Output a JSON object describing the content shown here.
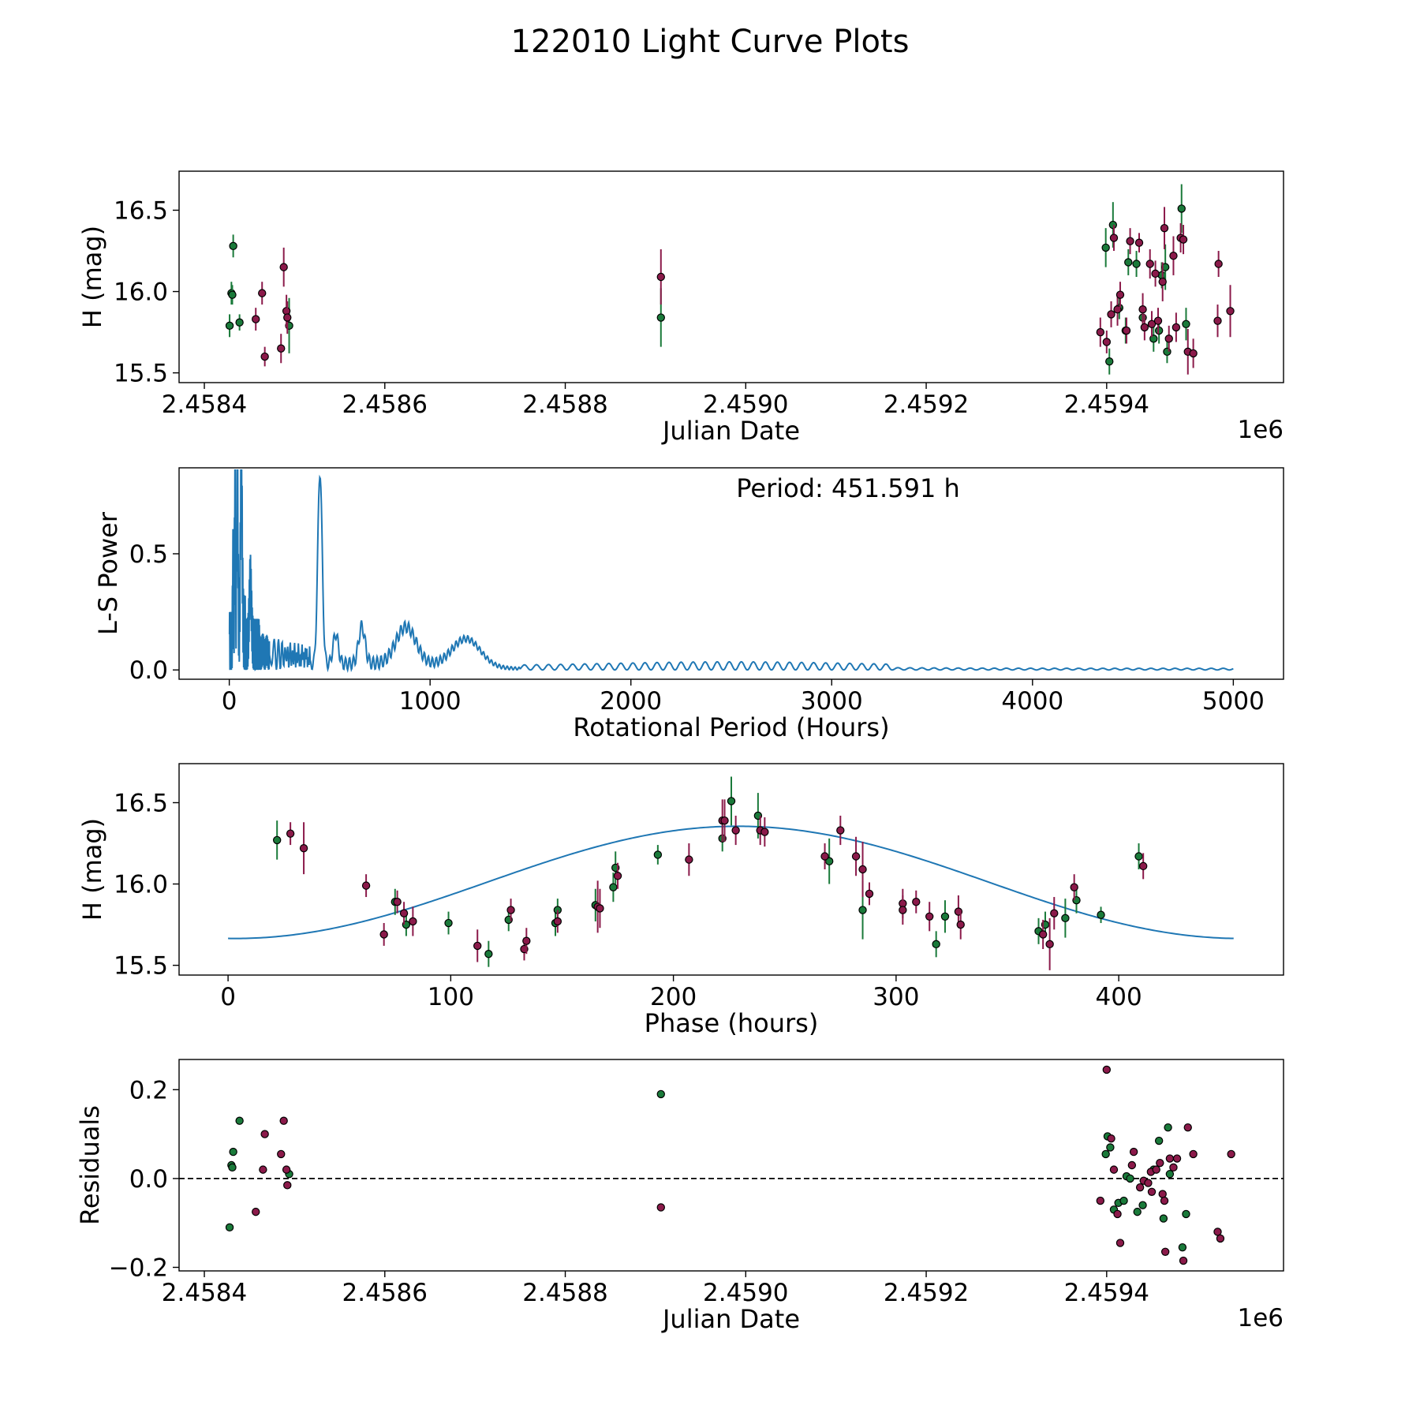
{
  "figure": {
    "title": "122010 Light Curve Plots"
  },
  "colors": {
    "maroon": "#8b1a4a",
    "green": "#1a7a3a",
    "line": "#1f77b4",
    "edge": "#000000"
  },
  "chart_data": [
    {
      "id": "lightcurve",
      "type": "scatter",
      "xlabel": "Julian Date",
      "ylabel": "H (mag)",
      "offset_label": "1e6",
      "xlim": [
        2458372,
        2459596
      ],
      "ylim": [
        15.44,
        16.74
      ],
      "xticks": [
        2458400,
        2458600,
        2458800,
        2459000,
        2459200,
        2459400
      ],
      "xtick_labels": [
        "2.4584",
        "2.4586",
        "2.4588",
        "2.4590",
        "2.4592",
        "2.4594"
      ],
      "yticks": [
        15.5,
        16.0,
        16.5
      ],
      "ytick_labels": [
        "15.5",
        "16.0",
        "16.5"
      ],
      "series": [
        {
          "name": "green",
          "color_key": "green",
          "points": [
            [
              2458428,
              15.79,
              0.07
            ],
            [
              2458430,
              15.99,
              0.07
            ],
            [
              2458431,
              15.98,
              0.06
            ],
            [
              2458432,
              16.28,
              0.07
            ],
            [
              2458439,
              15.81,
              0.05
            ],
            [
              2458494,
              15.79,
              0.17
            ],
            [
              2458906,
              15.84,
              0.18
            ],
            [
              2459399,
              16.27,
              0.12
            ],
            [
              2459403,
              15.57,
              0.08
            ],
            [
              2459407,
              16.41,
              0.14
            ],
            [
              2459414,
              15.9,
              0.07
            ],
            [
              2459421,
              15.76,
              0.08
            ],
            [
              2459424,
              16.18,
              0.08
            ],
            [
              2459433,
              16.17,
              0.08
            ],
            [
              2459440,
              15.84,
              0.07
            ],
            [
              2459452,
              15.71,
              0.08
            ],
            [
              2459458,
              15.76,
              0.08
            ],
            [
              2459461,
              16.1,
              0.08
            ],
            [
              2459465,
              16.15,
              0.14
            ],
            [
              2459467,
              15.63,
              0.07
            ],
            [
              2459483,
              16.51,
              0.15
            ],
            [
              2459488,
              15.8,
              0.1
            ]
          ]
        },
        {
          "name": "maroon",
          "color_key": "maroon",
          "points": [
            [
              2458457,
              15.83,
              0.07
            ],
            [
              2458464,
              15.99,
              0.07
            ],
            [
              2458467,
              15.6,
              0.06
            ],
            [
              2458485,
              15.65,
              0.09
            ],
            [
              2458488,
              16.15,
              0.12
            ],
            [
              2458491,
              15.88,
              0.1
            ],
            [
              2458492,
              15.84,
              0.1
            ],
            [
              2458906,
              16.09,
              0.17
            ],
            [
              2459393,
              15.75,
              0.09
            ],
            [
              2459400,
              15.69,
              0.07
            ],
            [
              2459405,
              15.86,
              0.08
            ],
            [
              2459408,
              16.33,
              0.08
            ],
            [
              2459412,
              15.89,
              0.1
            ],
            [
              2459415,
              15.98,
              0.08
            ],
            [
              2459422,
              15.76,
              0.08
            ],
            [
              2459426,
              16.31,
              0.08
            ],
            [
              2459436,
              16.3,
              0.06
            ],
            [
              2459440,
              15.89,
              0.1
            ],
            [
              2459442,
              15.78,
              0.08
            ],
            [
              2459448,
              16.17,
              0.09
            ],
            [
              2459450,
              15.8,
              0.08
            ],
            [
              2459454,
              16.11,
              0.08
            ],
            [
              2459457,
              15.82,
              0.08
            ],
            [
              2459462,
              16.06,
              0.12
            ],
            [
              2459464,
              16.39,
              0.13
            ],
            [
              2459469,
              15.71,
              0.08
            ],
            [
              2459474,
              16.22,
              0.12
            ],
            [
              2459477,
              15.78,
              0.09
            ],
            [
              2459482,
              16.33,
              0.09
            ],
            [
              2459485,
              16.32,
              0.09
            ],
            [
              2459490,
              15.63,
              0.14
            ],
            [
              2459496,
              15.62,
              0.09
            ],
            [
              2459523,
              15.82,
              0.1
            ],
            [
              2459524,
              16.17,
              0.08
            ],
            [
              2459537,
              15.88,
              0.16
            ]
          ]
        }
      ]
    },
    {
      "id": "periodogram",
      "type": "line",
      "xlabel": "Rotational Period (Hours)",
      "ylabel": "L-S Power",
      "annotation": "Period: 451.591 h",
      "xlim": [
        -250,
        5250
      ],
      "ylim": [
        -0.04,
        0.87
      ],
      "xticks": [
        0,
        1000,
        2000,
        3000,
        4000,
        5000
      ],
      "xtick_labels": [
        "0",
        "1000",
        "2000",
        "3000",
        "4000",
        "5000"
      ],
      "yticks": [
        0.0,
        0.5
      ],
      "ytick_labels": [
        "0.0",
        "0.5"
      ],
      "x_range": [
        1,
        5000
      ],
      "peaks": [
        {
          "center": 451.6,
          "height": 0.83,
          "width": 11
        },
        {
          "center": 60,
          "height": 0.76,
          "width": 4
        },
        {
          "center": 40,
          "height": 0.72,
          "width": 3
        },
        {
          "center": 28,
          "height": 0.65,
          "width": 2
        },
        {
          "center": 18,
          "height": 0.4,
          "width": 1.5
        },
        {
          "center": 105,
          "height": 0.28,
          "width": 5
        },
        {
          "center": 530,
          "height": 0.13,
          "width": 13
        },
        {
          "center": 660,
          "height": 0.16,
          "width": 16
        },
        {
          "center": 880,
          "height": 0.16,
          "width": 50
        },
        {
          "center": 1180,
          "height": 0.12,
          "width": 70
        }
      ]
    },
    {
      "id": "phased",
      "type": "scatter",
      "xlabel": "Phase (hours)",
      "ylabel": "H (mag)",
      "xlim": [
        -22,
        474
      ],
      "ylim": [
        15.44,
        16.74
      ],
      "xticks": [
        0,
        100,
        200,
        300,
        400
      ],
      "xtick_labels": [
        "0",
        "100",
        "200",
        "300",
        "400"
      ],
      "yticks": [
        15.5,
        16.0,
        16.5
      ],
      "ytick_labels": [
        "15.5",
        "16.0",
        "16.5"
      ],
      "model": {
        "period": 451.591,
        "mean": 16.01,
        "amplitude": 0.345,
        "peak_phase": 229
      },
      "series": [
        {
          "name": "green",
          "color_key": "green",
          "points": [
            [
              22,
              16.27,
              0.12
            ],
            [
              75,
              15.89,
              0.08
            ],
            [
              80,
              15.75,
              0.07
            ],
            [
              99,
              15.76,
              0.07
            ],
            [
              117,
              15.57,
              0.08
            ],
            [
              126,
              15.78,
              0.07
            ],
            [
              147,
              15.76,
              0.08
            ],
            [
              148,
              15.84,
              0.07
            ],
            [
              165,
              15.87,
              0.1
            ],
            [
              173,
              15.98,
              0.09
            ],
            [
              174,
              16.1,
              0.1
            ],
            [
              193,
              16.18,
              0.06
            ],
            [
              222,
              16.28,
              0.08
            ],
            [
              226,
              16.51,
              0.15
            ],
            [
              238,
              16.42,
              0.14
            ],
            [
              270,
              16.14,
              0.14
            ],
            [
              285,
              15.84,
              0.18
            ],
            [
              318,
              15.63,
              0.08
            ],
            [
              322,
              15.8,
              0.1
            ],
            [
              364,
              15.71,
              0.08
            ],
            [
              367,
              15.75,
              0.08
            ],
            [
              376,
              15.79,
              0.12
            ],
            [
              381,
              15.9,
              0.08
            ],
            [
              392,
              15.81,
              0.05
            ],
            [
              409,
              16.17,
              0.08
            ]
          ]
        },
        {
          "name": "maroon",
          "color_key": "maroon",
          "points": [
            [
              28,
              16.31,
              0.07
            ],
            [
              34,
              16.22,
              0.16
            ],
            [
              62,
              15.99,
              0.07
            ],
            [
              70,
              15.69,
              0.07
            ],
            [
              76,
              15.89,
              0.07
            ],
            [
              79,
              15.82,
              0.07
            ],
            [
              83,
              15.77,
              0.09
            ],
            [
              112,
              15.62,
              0.1
            ],
            [
              127,
              15.84,
              0.07
            ],
            [
              133,
              15.6,
              0.07
            ],
            [
              134,
              15.65,
              0.08
            ],
            [
              148,
              15.77,
              0.07
            ],
            [
              166,
              15.86,
              0.16
            ],
            [
              167,
              15.85,
              0.12
            ],
            [
              175,
              16.05,
              0.08
            ],
            [
              207,
              16.15,
              0.1
            ],
            [
              222,
              16.39,
              0.13
            ],
            [
              223,
              16.39,
              0.13
            ],
            [
              228,
              16.33,
              0.09
            ],
            [
              239,
              16.33,
              0.09
            ],
            [
              241,
              16.32,
              0.09
            ],
            [
              268,
              16.17,
              0.08
            ],
            [
              275,
              16.33,
              0.09
            ],
            [
              282,
              16.17,
              0.12
            ],
            [
              285,
              16.09,
              0.17
            ],
            [
              288,
              15.94,
              0.07
            ],
            [
              303,
              15.88,
              0.09
            ],
            [
              303,
              15.84,
              0.09
            ],
            [
              309,
              15.89,
              0.07
            ],
            [
              315,
              15.8,
              0.09
            ],
            [
              328,
              15.83,
              0.1
            ],
            [
              329,
              15.75,
              0.09
            ],
            [
              366,
              15.69,
              0.09
            ],
            [
              369,
              15.63,
              0.16
            ],
            [
              371,
              15.82,
              0.1
            ],
            [
              380,
              15.98,
              0.08
            ],
            [
              411,
              16.11,
              0.08
            ]
          ]
        }
      ]
    },
    {
      "id": "residuals",
      "type": "scatter",
      "xlabel": "Julian Date",
      "ylabel": "Residuals",
      "offset_label": "1e6",
      "xlim": [
        2458372,
        2459596
      ],
      "ylim": [
        -0.208,
        0.268
      ],
      "xticks": [
        2458400,
        2458600,
        2458800,
        2459000,
        2459200,
        2459400
      ],
      "xtick_labels": [
        "2.4584",
        "2.4586",
        "2.4588",
        "2.4590",
        "2.4592",
        "2.4594"
      ],
      "yticks": [
        -0.2,
        0.0,
        0.2
      ],
      "ytick_labels": [
        "−0.2",
        "0.0",
        "0.2"
      ],
      "zero_line": true,
      "series": [
        {
          "name": "green",
          "color_key": "green",
          "points": [
            [
              2458428,
              -0.11
            ],
            [
              2458430,
              0.03
            ],
            [
              2458431,
              0.025
            ],
            [
              2458432,
              0.06
            ],
            [
              2458439,
              0.13
            ],
            [
              2458494,
              0.01
            ],
            [
              2458906,
              0.19
            ],
            [
              2459399,
              0.055
            ],
            [
              2459401,
              0.095
            ],
            [
              2459404,
              0.07
            ],
            [
              2459408,
              -0.07
            ],
            [
              2459413,
              -0.055
            ],
            [
              2459419,
              -0.05
            ],
            [
              2459422,
              0.005
            ],
            [
              2459426,
              0.0
            ],
            [
              2459434,
              -0.075
            ],
            [
              2459440,
              -0.06
            ],
            [
              2459452,
              0.02
            ],
            [
              2459458,
              0.085
            ],
            [
              2459463,
              -0.09
            ],
            [
              2459468,
              0.115
            ],
            [
              2459470,
              0.01
            ],
            [
              2459484,
              -0.155
            ],
            [
              2459488,
              -0.08
            ]
          ]
        },
        {
          "name": "maroon",
          "color_key": "maroon",
          "points": [
            [
              2458457,
              -0.075
            ],
            [
              2458465,
              0.02
            ],
            [
              2458467,
              0.1
            ],
            [
              2458485,
              0.055
            ],
            [
              2458488,
              0.13
            ],
            [
              2458491,
              0.02
            ],
            [
              2458492,
              -0.015
            ],
            [
              2458906,
              -0.065
            ],
            [
              2459393,
              -0.05
            ],
            [
              2459400,
              0.245
            ],
            [
              2459405,
              0.09
            ],
            [
              2459408,
              0.02
            ],
            [
              2459412,
              -0.08
            ],
            [
              2459415,
              -0.145
            ],
            [
              2459428,
              0.03
            ],
            [
              2459430,
              0.06
            ],
            [
              2459437,
              -0.02
            ],
            [
              2459441,
              -0.005
            ],
            [
              2459446,
              -0.01
            ],
            [
              2459449,
              0.015
            ],
            [
              2459450,
              -0.03
            ],
            [
              2459455,
              0.02
            ],
            [
              2459459,
              0.035
            ],
            [
              2459462,
              -0.035
            ],
            [
              2459464,
              -0.05
            ],
            [
              2459465,
              -0.165
            ],
            [
              2459470,
              0.045
            ],
            [
              2459474,
              0.025
            ],
            [
              2459478,
              0.045
            ],
            [
              2459485,
              -0.185
            ],
            [
              2459490,
              0.115
            ],
            [
              2459496,
              0.055
            ],
            [
              2459523,
              -0.12
            ],
            [
              2459526,
              -0.135
            ],
            [
              2459538,
              0.055
            ]
          ]
        }
      ]
    }
  ]
}
